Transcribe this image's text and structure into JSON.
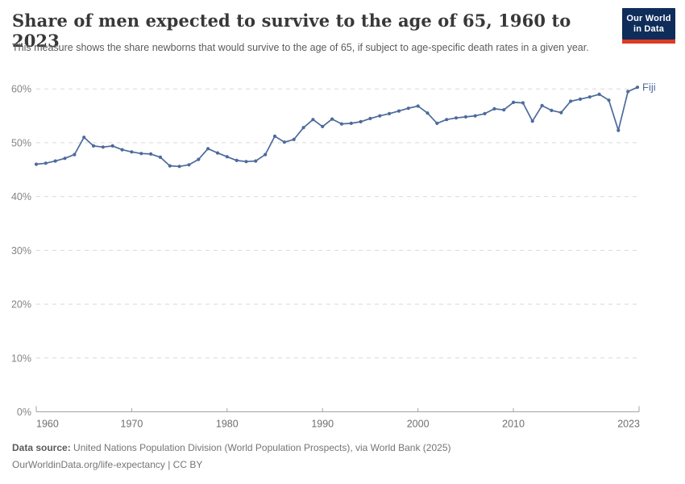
{
  "header": {
    "title": "Share of men expected to survive to the age of 65, 1960 to 2023",
    "subtitle": "This measure shows the share newborns that would survive to the age of 65, if subject to age-specific death rates in a given year.",
    "logo": {
      "line1": "Our World",
      "line2": "in Data",
      "bg_color": "#0e2d5a",
      "bar_color": "#dc3c22"
    }
  },
  "chart_data": {
    "type": "line",
    "title": "Share of men expected to survive to the age of 65, 1960 to 2023",
    "xlabel": "",
    "ylabel": "",
    "xlim": [
      1960,
      2023
    ],
    "ylim": [
      0,
      60
    ],
    "grid": "horizontal-dashed",
    "legend_position": "end-of-line-label",
    "x_ticks": [
      1960,
      1970,
      1980,
      1990,
      2000,
      2010,
      2023
    ],
    "y_tick_labels": [
      "0%",
      "10%",
      "20%",
      "30%",
      "40%",
      "50%",
      "60%"
    ],
    "y_tick_values": [
      0,
      10,
      20,
      30,
      40,
      50,
      60
    ],
    "series": [
      {
        "name": "Fiji",
        "color": "#4C6A9C",
        "years": [
          1960,
          1961,
          1962,
          1963,
          1964,
          1965,
          1966,
          1967,
          1968,
          1969,
          1970,
          1971,
          1972,
          1973,
          1974,
          1975,
          1976,
          1977,
          1978,
          1979,
          1980,
          1981,
          1982,
          1983,
          1984,
          1985,
          1986,
          1987,
          1988,
          1989,
          1990,
          1991,
          1992,
          1993,
          1994,
          1995,
          1996,
          1997,
          1998,
          1999,
          2000,
          2001,
          2002,
          2003,
          2004,
          2005,
          2006,
          2007,
          2008,
          2009,
          2010,
          2011,
          2012,
          2013,
          2014,
          2015,
          2016,
          2017,
          2018,
          2019,
          2020,
          2021,
          2022,
          2023
        ],
        "values": [
          46.0,
          46.2,
          46.6,
          47.1,
          47.8,
          51.0,
          49.4,
          49.2,
          49.4,
          48.7,
          48.3,
          48.0,
          47.9,
          47.3,
          45.7,
          45.6,
          45.9,
          46.9,
          48.9,
          48.1,
          47.4,
          46.7,
          46.5,
          46.6,
          47.8,
          51.2,
          50.1,
          50.6,
          52.8,
          54.3,
          53.0,
          54.4,
          53.5,
          53.6,
          53.9,
          54.5,
          55.0,
          55.4,
          55.9,
          56.4,
          56.8,
          55.5,
          53.6,
          54.3,
          54.6,
          54.8,
          55.0,
          55.4,
          56.3,
          56.1,
          57.5,
          57.4,
          54.0,
          56.9,
          56.0,
          55.6,
          57.7,
          58.1,
          58.5,
          59.0,
          57.9,
          52.3,
          59.5,
          60.3
        ]
      }
    ],
    "colors": {
      "gridline": "#d9d9d9",
      "axis": "#a3a3a3",
      "tick_label": "#6e6e6e",
      "y_label": "#858585"
    }
  },
  "footer": {
    "source_label": "Data source:",
    "source_text": " United Nations Population Division (World Population Prospects), via World Bank (2025)",
    "attribution": "OurWorldinData.org/life-expectancy | CC BY"
  }
}
